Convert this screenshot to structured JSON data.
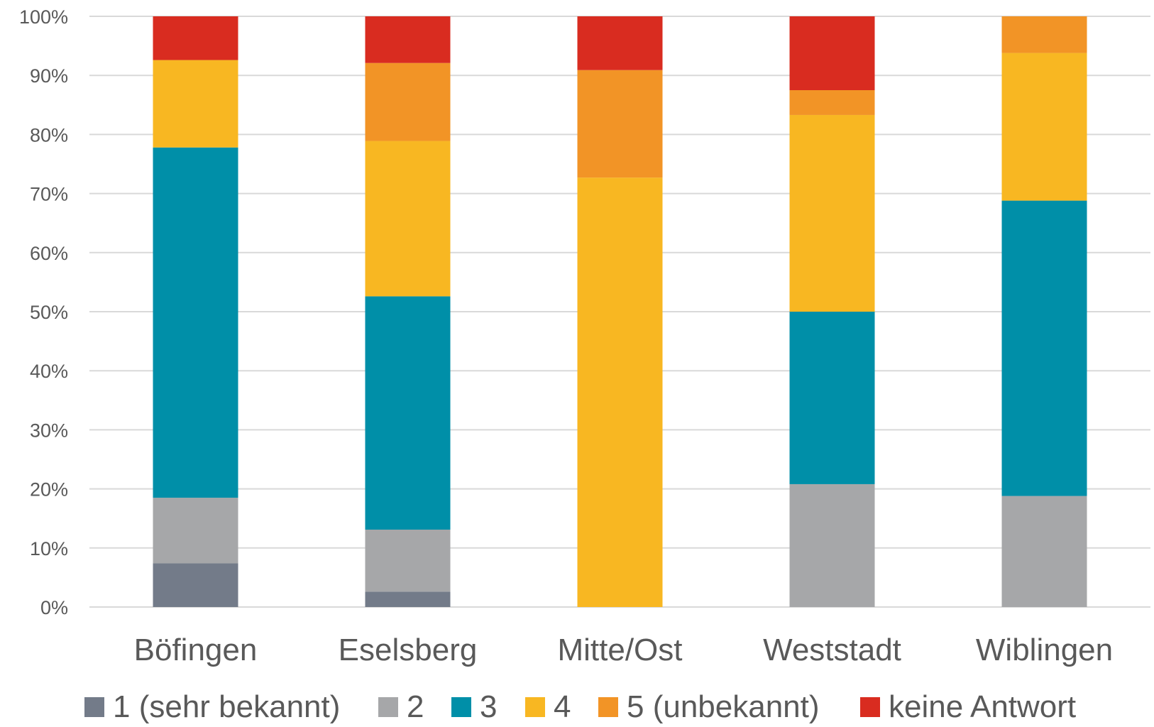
{
  "chart_data": {
    "type": "bar",
    "stacked": true,
    "title": "",
    "xlabel": "",
    "ylabel": "",
    "ylim": [
      0,
      100
    ],
    "y_ticks": [
      "0%",
      "10%",
      "20%",
      "30%",
      "40%",
      "50%",
      "60%",
      "70%",
      "80%",
      "90%",
      "100%"
    ],
    "grid": true,
    "legend_position": "bottom",
    "categories": [
      "Böfingen",
      "Eselsberg",
      "Mitte/Ost",
      "Weststadt",
      "Wiblingen"
    ],
    "series": [
      {
        "name": "1 (sehr bekannt)",
        "color": "#737b89",
        "values": [
          7.4,
          2.6,
          0,
          0,
          0
        ]
      },
      {
        "name": "2",
        "color": "#a6a7a9",
        "values": [
          11.1,
          10.5,
          0,
          20.8,
          18.8
        ]
      },
      {
        "name": "3",
        "color": "#008fa8",
        "values": [
          59.3,
          39.5,
          0,
          29.2,
          50.0
        ]
      },
      {
        "name": "4",
        "color": "#f8b722",
        "values": [
          14.8,
          26.3,
          72.7,
          33.3,
          25.0
        ]
      },
      {
        "name": "5 (unbekannt)",
        "color": "#f29426",
        "values": [
          0,
          13.2,
          18.2,
          4.2,
          6.2
        ]
      },
      {
        "name": "keine Antwort",
        "color": "#d92c20",
        "values": [
          7.4,
          7.9,
          9.1,
          12.5,
          0
        ]
      }
    ]
  }
}
